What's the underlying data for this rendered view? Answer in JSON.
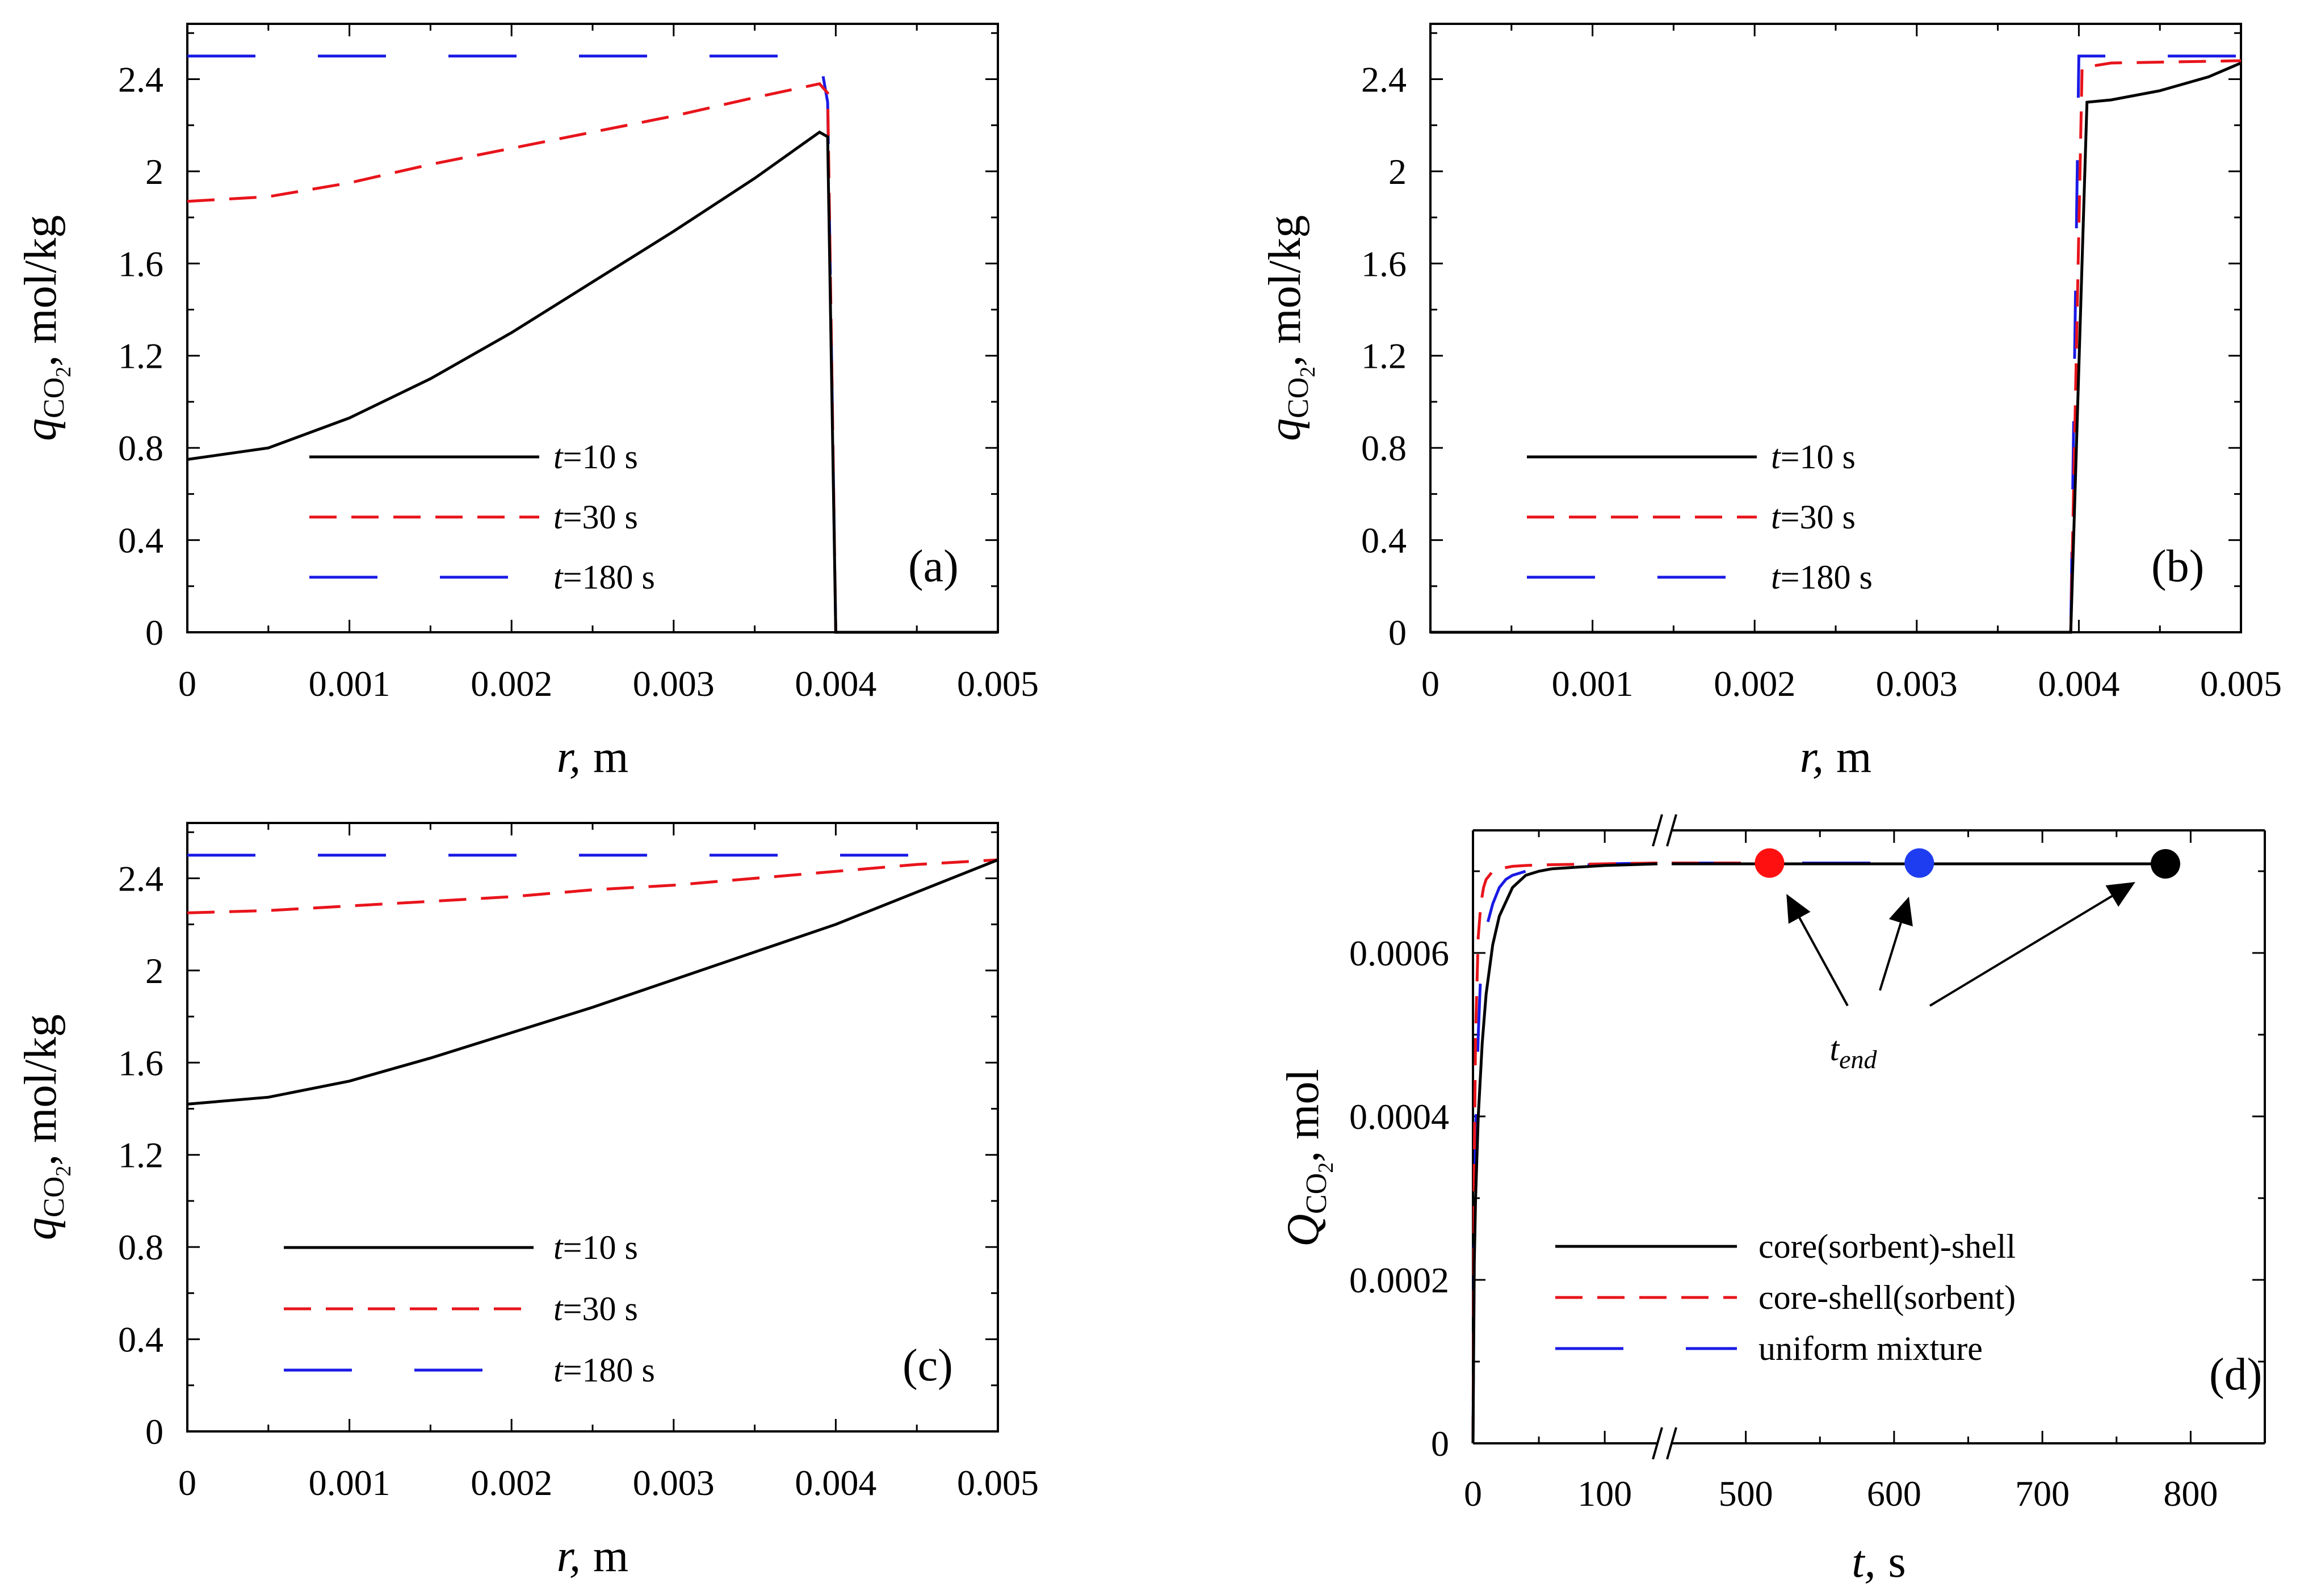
{
  "colors": {
    "black": "#000000",
    "red": "#e8141b",
    "blue": "#1a1ae6",
    "marker_red": "#ff1010",
    "marker_blue": "#1f3df0"
  },
  "chart_data": [
    {
      "id": "a",
      "type": "line",
      "panel_label": "(a)",
      "xlabel": {
        "sym": "r,",
        "unit": "m"
      },
      "ylabel": {
        "sym": "q",
        "sub": "CO",
        "subsub": "2",
        "unit": ", mol/kg"
      },
      "xlim": [
        0,
        0.005
      ],
      "ylim": [
        0,
        2.64
      ],
      "xticks": [
        0,
        0.001,
        0.002,
        0.003,
        0.004,
        0.005
      ],
      "xtick_labels": [
        "0",
        "0.001",
        "0.002",
        "0.003",
        "0.004",
        "0.005"
      ],
      "yticks": [
        0,
        0.4,
        0.8,
        1.2,
        1.6,
        2,
        2.4
      ],
      "ytick_labels": [
        "0",
        "0.4",
        "0.8",
        "1.2",
        "1.6",
        "2",
        "2.4"
      ],
      "legend": [
        {
          "prefix": "t",
          "label": "=10 s",
          "color": "#000000",
          "dash": "solid"
        },
        {
          "prefix": "t",
          "label": "=30 s",
          "color": "#e8141b",
          "dash": "dash"
        },
        {
          "prefix": "t",
          "label": "=180 s",
          "color": "#1a1ae6",
          "dash": "longdash"
        }
      ],
      "series": [
        {
          "name": "t=10 s",
          "color": "#000000",
          "dash": "solid",
          "x": [
            0,
            0.0005,
            0.001,
            0.0015,
            0.002,
            0.0025,
            0.003,
            0.0035,
            0.0039,
            0.00395,
            0.004,
            0.005
          ],
          "y": [
            0.75,
            0.8,
            0.93,
            1.1,
            1.3,
            1.52,
            1.74,
            1.97,
            2.17,
            2.15,
            0,
            0
          ]
        },
        {
          "name": "t=30 s",
          "color": "#e8141b",
          "dash": "dash",
          "x": [
            0,
            0.0005,
            0.001,
            0.0015,
            0.002,
            0.0025,
            0.003,
            0.0035,
            0.0039,
            0.00395,
            0.004,
            0.005
          ],
          "y": [
            1.87,
            1.89,
            1.95,
            2.03,
            2.1,
            2.17,
            2.24,
            2.32,
            2.38,
            2.34,
            0,
            0
          ]
        },
        {
          "name": "t=180 s",
          "color": "#1a1ae6",
          "dash": "longdash",
          "x": [
            0,
            0.0039,
            0.00395,
            0.004,
            0.005
          ],
          "y": [
            2.5,
            2.5,
            2.3,
            0,
            0
          ]
        }
      ]
    },
    {
      "id": "b",
      "type": "line",
      "panel_label": "(b)",
      "xlabel": {
        "sym": "r,",
        "unit": "m"
      },
      "ylabel": {
        "sym": "q",
        "sub": "CO",
        "subsub": "2",
        "unit": ", mol/kg"
      },
      "xlim": [
        0,
        0.005
      ],
      "ylim": [
        0,
        2.64
      ],
      "xticks": [
        0,
        0.001,
        0.002,
        0.003,
        0.004,
        0.005
      ],
      "xtick_labels": [
        "0",
        "0.001",
        "0.002",
        "0.003",
        "0.004",
        "0.005"
      ],
      "yticks": [
        0,
        0.4,
        0.8,
        1.2,
        1.6,
        2,
        2.4
      ],
      "ytick_labels": [
        "0",
        "0.4",
        "0.8",
        "1.2",
        "1.6",
        "2",
        "2.4"
      ],
      "legend": [
        {
          "prefix": "t",
          "label": "=10 s",
          "color": "#000000",
          "dash": "solid"
        },
        {
          "prefix": "t",
          "label": "=30 s",
          "color": "#e8141b",
          "dash": "dash"
        },
        {
          "prefix": "t",
          "label": "=180 s",
          "color": "#1a1ae6",
          "dash": "longdash"
        }
      ],
      "series": [
        {
          "name": "t=10 s",
          "color": "#000000",
          "dash": "solid",
          "x": [
            0,
            0.00395,
            0.00405,
            0.0042,
            0.0045,
            0.0048,
            0.005
          ],
          "y": [
            0,
            0,
            2.3,
            2.31,
            2.35,
            2.41,
            2.47
          ]
        },
        {
          "name": "t=30 s",
          "color": "#e8141b",
          "dash": "dash",
          "x": [
            0,
            0.00395,
            0.00402,
            0.0042,
            0.005
          ],
          "y": [
            0,
            0,
            2.45,
            2.47,
            2.48
          ]
        },
        {
          "name": "t=180 s",
          "color": "#1a1ae6",
          "dash": "longdash",
          "x": [
            0,
            0.00395,
            0.004,
            0.005
          ],
          "y": [
            0,
            0,
            2.5,
            2.5
          ]
        }
      ]
    },
    {
      "id": "c",
      "type": "line",
      "panel_label": "(c)",
      "xlabel": {
        "sym": "r,",
        "unit": "m"
      },
      "ylabel": {
        "sym": "q",
        "sub": "CO",
        "subsub": "2",
        "unit": ", mol/kg"
      },
      "xlim": [
        0,
        0.005
      ],
      "ylim": [
        0,
        2.64
      ],
      "xticks": [
        0,
        0.001,
        0.002,
        0.003,
        0.004,
        0.005
      ],
      "xtick_labels": [
        "0",
        "0.001",
        "0.002",
        "0.003",
        "0.004",
        "0.005"
      ],
      "yticks": [
        0,
        0.4,
        0.8,
        1.2,
        1.6,
        2,
        2.4
      ],
      "ytick_labels": [
        "0",
        "0.4",
        "0.8",
        "1.2",
        "1.6",
        "2",
        "2.4"
      ],
      "legend": [
        {
          "prefix": "t",
          "label": "=10 s",
          "color": "#000000",
          "dash": "solid"
        },
        {
          "prefix": "t",
          "label": "=30 s",
          "color": "#e8141b",
          "dash": "dash"
        },
        {
          "prefix": "t",
          "label": "=180 s",
          "color": "#1a1ae6",
          "dash": "longdash"
        }
      ],
      "series": [
        {
          "name": "t=10 s",
          "color": "#000000",
          "dash": "solid",
          "x": [
            0,
            0.0005,
            0.001,
            0.0015,
            0.002,
            0.0025,
            0.003,
            0.0035,
            0.004,
            0.0045,
            0.005
          ],
          "y": [
            1.42,
            1.45,
            1.52,
            1.62,
            1.73,
            1.84,
            1.96,
            2.08,
            2.2,
            2.34,
            2.48
          ]
        },
        {
          "name": "t=30 s",
          "color": "#e8141b",
          "dash": "dash",
          "x": [
            0,
            0.0005,
            0.001,
            0.0015,
            0.002,
            0.0025,
            0.003,
            0.0035,
            0.004,
            0.0045,
            0.005
          ],
          "y": [
            2.25,
            2.26,
            2.28,
            2.3,
            2.32,
            2.35,
            2.37,
            2.4,
            2.43,
            2.46,
            2.48
          ]
        },
        {
          "name": "t=180 s",
          "color": "#1a1ae6",
          "dash": "longdash",
          "x": [
            0,
            0.0047
          ],
          "y": [
            2.5,
            2.5
          ]
        }
      ]
    },
    {
      "id": "d",
      "type": "line",
      "panel_label": "(d)",
      "xlabel": {
        "sym": "t,",
        "unit": "s"
      },
      "ylabel": {
        "sym": "Q",
        "sub": "CO",
        "subsub": "2",
        "unit": ", mol"
      },
      "axis_break": [
        140,
        450
      ],
      "xlim_left": [
        0,
        140
      ],
      "xlim_right": [
        450,
        850
      ],
      "ylim": [
        0,
        0.00075
      ],
      "xticks": [
        0,
        100,
        500,
        600,
        700,
        800
      ],
      "xtick_labels": [
        "0",
        "100",
        "500",
        "600",
        "700",
        "800"
      ],
      "yticks": [
        0,
        0.0002,
        0.0004,
        0.0006
      ],
      "ytick_labels": [
        "0",
        "0.0002",
        "0.0004",
        "0.0006"
      ],
      "legend": [
        {
          "prefix": "",
          "label": "core(sorbent)-shell",
          "color": "#000000",
          "dash": "solid"
        },
        {
          "prefix": "",
          "label": "core-shell(sorbent)",
          "color": "#e8141b",
          "dash": "dash"
        },
        {
          "prefix": "",
          "label": "uniform mixture",
          "color": "#1a1ae6",
          "dash": "longdash"
        }
      ],
      "annotation": {
        "text": "t",
        "sub": "end"
      },
      "series": [
        {
          "name": "core(sorbent)-shell",
          "color": "#000000",
          "dash": "solid",
          "x": [
            0,
            1,
            2,
            4,
            7,
            10,
            15,
            20,
            30,
            40,
            50,
            60,
            80,
            100,
            120,
            140,
            450,
            783
          ],
          "y": [
            0,
            0.00022,
            0.0003,
            0.0004,
            0.00049,
            0.00055,
            0.00061,
            0.000645,
            0.00068,
            0.000695,
            0.0007,
            0.000703,
            0.000705,
            0.000707,
            0.000708,
            0.000709,
            0.000709,
            0.000709
          ],
          "end": {
            "t": 783,
            "q": 0.000709
          }
        },
        {
          "name": "core-shell(sorbent)",
          "color": "#e8141b",
          "dash": "dash",
          "x": [
            0,
            1,
            2,
            4,
            6,
            8,
            10,
            15,
            20,
            30,
            40,
            60,
            100,
            140,
            450,
            516
          ],
          "y": [
            0,
            0.00035,
            0.0005,
            0.00062,
            0.00066,
            0.00068,
            0.00069,
            0.0007,
            0.000703,
            0.000706,
            0.000707,
            0.000708,
            0.000709,
            0.00071,
            0.00071,
            0.00071
          ],
          "end": {
            "t": 516,
            "q": 0.00071
          }
        },
        {
          "name": "uniform mixture",
          "color": "#1a1ae6",
          "dash": "longdash",
          "x": [
            0,
            1,
            2,
            4,
            6,
            10,
            15,
            20,
            25,
            30,
            40,
            60,
            100,
            140,
            450,
            617
          ],
          "y": [
            0,
            0.00026,
            0.00038,
            0.0005,
            0.00058,
            0.00063,
            0.00066,
            0.00068,
            0.00069,
            0.000695,
            0.0007,
            0.000705,
            0.000709,
            0.00071,
            0.00071,
            0.00071
          ],
          "end": {
            "t": 617,
            "q": 0.00071
          }
        }
      ]
    }
  ]
}
